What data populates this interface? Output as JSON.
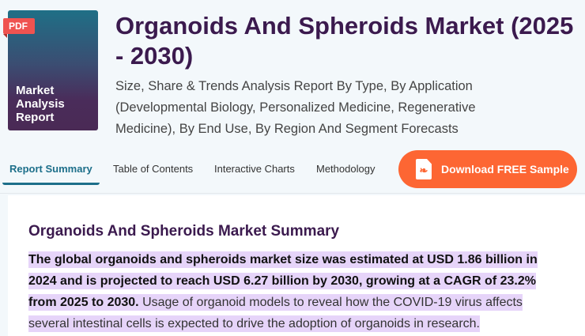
{
  "cover": {
    "badge": "PDF",
    "text": "Market Analysis Report"
  },
  "title": "Organoids And Spheroids Market (2025 - 2030)",
  "subtitle": "Size, Share & Trends Analysis Report By Type, By Application (Developmental Biology, Personalized Medicine, Regenerative Medicine), By End Use, By Region And Segment Forecasts",
  "tabs": [
    {
      "label": "Report Summary",
      "active": true
    },
    {
      "label": "Table of Contents"
    },
    {
      "label": "Interactive Charts"
    },
    {
      "label": "Methodology"
    }
  ],
  "download": {
    "label": "Download FREE Sample",
    "icon": "pdf-file-icon"
  },
  "summary": {
    "heading": "Organoids And Spheroids Market Summary",
    "bold_text": "The global organoids and spheroids market size was estimated at USD 1.86 billion in 2024 and is projected to reach USD 6.27 billion by 2030, growing at a CAGR of 23.2% from 2025 to 2030.",
    "text": " Usage of organoid models to reveal how the COVID-19 virus affects several intestinal cells is expected to drive the adoption of organoids in research."
  },
  "colors": {
    "title": "#3b1a4e",
    "accent": "#1d6f8a",
    "button": "#fd6633",
    "highlight": "#e6d4f9"
  }
}
